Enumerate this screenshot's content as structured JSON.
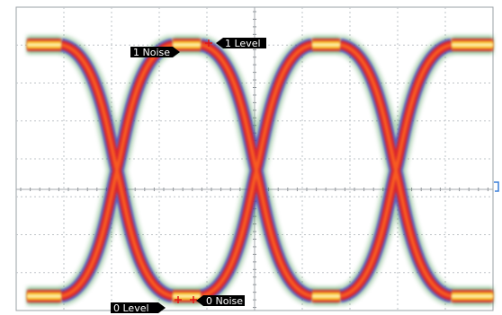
{
  "chart_data": {
    "type": "eye-diagram",
    "title": "",
    "xlabel": "",
    "ylabel": "",
    "eye_count": 3,
    "crossing_count": 3,
    "grid": true,
    "grid_divisions": {
      "x": 10,
      "y": 8
    },
    "colors": {
      "background": "#ffffff",
      "grid": "#bfc4c8",
      "density_low": "#2e8b3a",
      "density_edge": "#3b3fc8",
      "density_mid": "#e0202a",
      "density_high": "#f5b51e",
      "density_peak": "#fff2b0",
      "marker": "#e01515",
      "tag_bg": "#000000",
      "tag_text": "#ffffff",
      "ref_marker": "#3a7fd8"
    },
    "annotations": [
      {
        "id": "noise1",
        "text": "1 Noise",
        "pointer": "right"
      },
      {
        "id": "level1",
        "text": "1 Level",
        "pointer": "left"
      },
      {
        "id": "noise0",
        "text": "0 Noise",
        "pointer": "left"
      },
      {
        "id": "level0",
        "text": "0 Level",
        "pointer": "right"
      }
    ]
  }
}
